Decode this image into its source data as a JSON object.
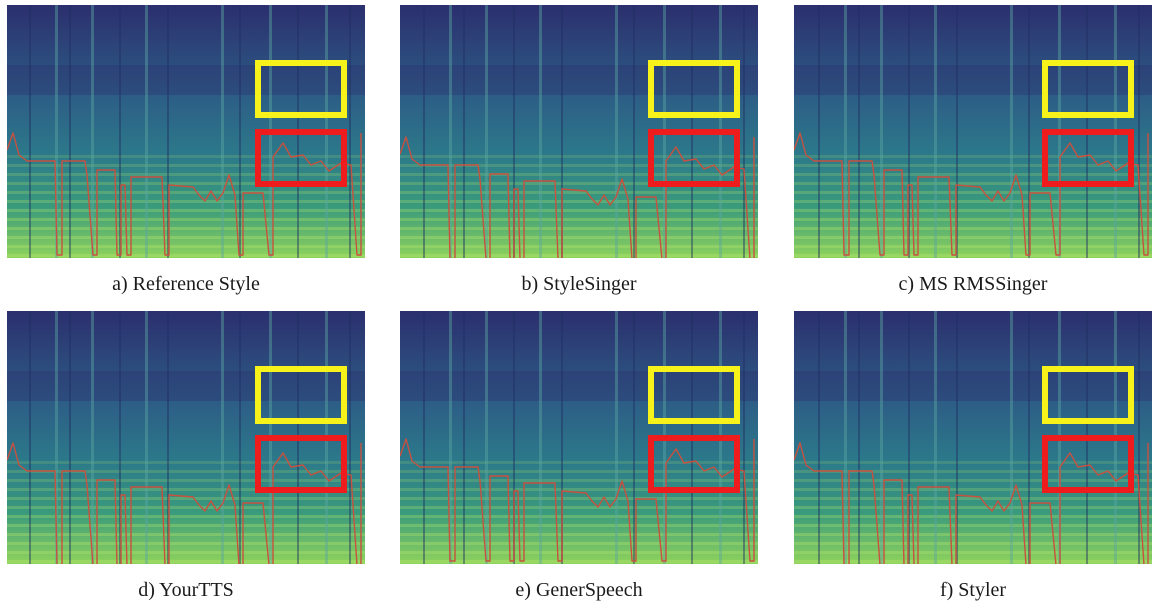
{
  "figure": {
    "panels": [
      {
        "id": "a",
        "caption": "a) Reference Style"
      },
      {
        "id": "b",
        "caption": "b) StyleSinger"
      },
      {
        "id": "c",
        "caption": "c) MS RMSSinger"
      },
      {
        "id": "d",
        "caption": "d) YourTTS"
      },
      {
        "id": "e",
        "caption": "e) GenerSpeech"
      },
      {
        "id": "f",
        "caption": "f) Styler"
      }
    ],
    "colors": {
      "background_dark": "#2b2f6e",
      "background_mid": "#2c7a8a",
      "harmonic_light": "#8fd35c",
      "pitch_line": "#c8513f",
      "highlight_yellow": "#f7f21a",
      "highlight_red": "#ee1c1c"
    }
  }
}
